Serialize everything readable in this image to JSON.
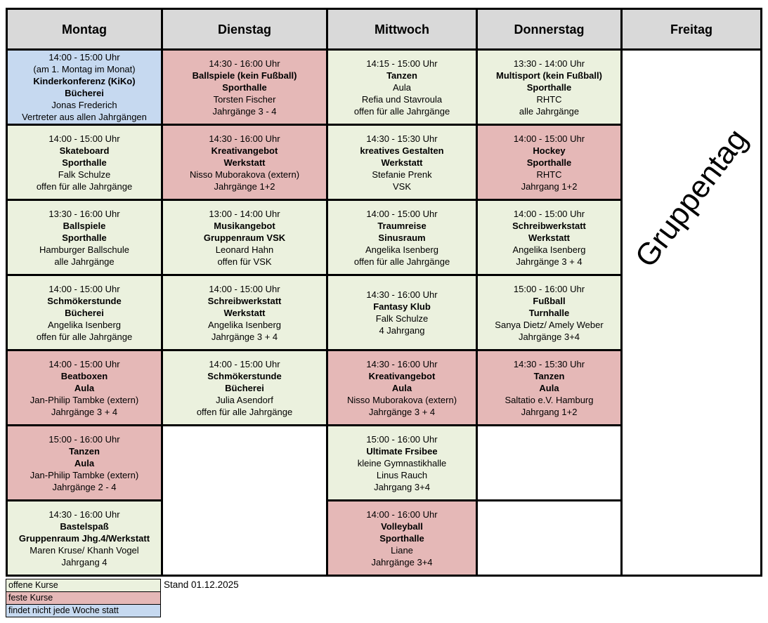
{
  "colors": {
    "open_course_bg": "#EBF1DE",
    "fixed_course_bg": "#E5B8B7",
    "not_weekly_bg": "#C6D9F0",
    "header_bg": "#D9D9D9",
    "empty_bg": "#FFFFFF",
    "border": "#000000"
  },
  "table": {
    "days": [
      {
        "label": "Montag",
        "cells": [
          {
            "bg": "not_weekly_bg",
            "lines": [
              {
                "text": "14:00 - 15:00 Uhr",
                "bold": false
              },
              {
                "text": "(am 1. Montag im Monat)",
                "bold": false
              },
              {
                "text": "Kinderkonferenz (KiKo)",
                "bold": true
              },
              {
                "text": "Bücherei",
                "bold": true
              },
              {
                "text": "Jonas Frederich",
                "bold": false
              },
              {
                "text": "Vertreter aus allen Jahrgängen",
                "bold": false
              }
            ]
          },
          {
            "bg": "open_course_bg",
            "lines": [
              {
                "text": "14:00 - 15:00 Uhr",
                "bold": false
              },
              {
                "text": "Skateboard",
                "bold": true
              },
              {
                "text": "Sporthalle",
                "bold": true
              },
              {
                "text": "Falk Schulze",
                "bold": false
              },
              {
                "text": "offen für alle Jahrgänge",
                "bold": false
              }
            ]
          },
          {
            "bg": "open_course_bg",
            "lines": [
              {
                "text": "13:30 - 16:00 Uhr",
                "bold": false
              },
              {
                "text": "Ballspiele",
                "bold": true
              },
              {
                "text": "Sporthalle",
                "bold": true
              },
              {
                "text": "Hamburger Ballschule",
                "bold": false
              },
              {
                "text": "alle Jahrgänge",
                "bold": false
              }
            ]
          },
          {
            "bg": "open_course_bg",
            "lines": [
              {
                "text": "14:00 - 15:00 Uhr",
                "bold": false
              },
              {
                "text": "Schmökerstunde",
                "bold": true
              },
              {
                "text": "Bücherei",
                "bold": true
              },
              {
                "text": "Angelika Isenberg",
                "bold": false
              },
              {
                "text": "offen für alle Jahrgänge",
                "bold": false
              }
            ]
          },
          {
            "bg": "fixed_course_bg",
            "lines": [
              {
                "text": "14:00 - 15:00 Uhr",
                "bold": false
              },
              {
                "text": "Beatboxen",
                "bold": true
              },
              {
                "text": "Aula",
                "bold": true
              },
              {
                "text": "Jan-Philip Tambke (extern)",
                "bold": false
              },
              {
                "text": "Jahrgänge 3 + 4",
                "bold": false
              }
            ]
          },
          {
            "bg": "fixed_course_bg",
            "lines": [
              {
                "text": "15:00 - 16:00 Uhr",
                "bold": false
              },
              {
                "text": "Tanzen",
                "bold": true
              },
              {
                "text": "Aula",
                "bold": true
              },
              {
                "text": "Jan-Philip Tambke (extern)",
                "bold": false
              },
              {
                "text": "Jahrgänge 2 - 4",
                "bold": false
              }
            ]
          },
          {
            "bg": "open_course_bg",
            "lines": [
              {
                "text": "14:30 - 16:00 Uhr",
                "bold": false
              },
              {
                "text": "Bastelspaß",
                "bold": true
              },
              {
                "text": "Gruppenraum Jhg.4/Werkstatt",
                "bold": true
              },
              {
                "text": "Maren Kruse/ Khanh Vogel",
                "bold": false
              },
              {
                "text": "Jahrgang 4",
                "bold": false
              }
            ]
          }
        ]
      },
      {
        "label": "Dienstag",
        "cells": [
          {
            "bg": "fixed_course_bg",
            "lines": [
              {
                "text": "14:30 - 16:00 Uhr",
                "bold": false
              },
              {
                "text": "Ballspiele (kein Fußball)",
                "bold": true
              },
              {
                "text": "Sporthalle",
                "bold": true
              },
              {
                "text": "Torsten Fischer",
                "bold": false
              },
              {
                "text": "Jahrgänge 3 - 4",
                "bold": false
              }
            ]
          },
          {
            "bg": "fixed_course_bg",
            "lines": [
              {
                "text": "14:30 - 16:00 Uhr",
                "bold": false
              },
              {
                "text": "Kreativangebot",
                "bold": true
              },
              {
                "text": "Werkstatt",
                "bold": true
              },
              {
                "text": "Nisso Muborakova (extern)",
                "bold": false
              },
              {
                "text": "Jahrgänge 1+2",
                "bold": false
              }
            ]
          },
          {
            "bg": "open_course_bg",
            "lines": [
              {
                "text": "13:00 - 14:00 Uhr",
                "bold": false
              },
              {
                "text": "Musikangebot",
                "bold": true
              },
              {
                "text": "Gruppenraum VSK",
                "bold": true
              },
              {
                "text": "Leonard Hahn",
                "bold": false
              },
              {
                "text": "offen für VSK",
                "bold": false
              }
            ]
          },
          {
            "bg": "open_course_bg",
            "lines": [
              {
                "text": "14:00 - 15:00 Uhr",
                "bold": false
              },
              {
                "text": "Schreibwerkstatt",
                "bold": true
              },
              {
                "text": "Werkstatt",
                "bold": true
              },
              {
                "text": "Angelika Isenberg",
                "bold": false
              },
              {
                "text": "Jahrgänge 3 + 4",
                "bold": false
              }
            ]
          },
          {
            "bg": "open_course_bg",
            "lines": [
              {
                "text": "14:00 - 15:00 Uhr",
                "bold": false
              },
              {
                "text": "Schmökerstunde",
                "bold": true
              },
              {
                "text": "Bücherei",
                "bold": true
              },
              {
                "text": "Julia Asendorf",
                "bold": false
              },
              {
                "text": "offen für alle Jahrgänge",
                "bold": false
              }
            ]
          },
          {
            "bg": "empty_bg",
            "span": 2,
            "lines": []
          }
        ]
      },
      {
        "label": "Mittwoch",
        "cells": [
          {
            "bg": "open_course_bg",
            "lines": [
              {
                "text": "14:15 - 15:00 Uhr",
                "bold": false
              },
              {
                "text": "Tanzen",
                "bold": true
              },
              {
                "text": "Aula",
                "bold": false
              },
              {
                "text": "Refia und Stavroula",
                "bold": false
              },
              {
                "text": "offen für alle Jahrgänge",
                "bold": false
              }
            ]
          },
          {
            "bg": "open_course_bg",
            "lines": [
              {
                "text": "14:30 - 15:30 Uhr",
                "bold": false
              },
              {
                "text": "kreatives Gestalten",
                "bold": true
              },
              {
                "text": "Werkstatt",
                "bold": true
              },
              {
                "text": "Stefanie Prenk",
                "bold": false
              },
              {
                "text": "VSK",
                "bold": false
              }
            ]
          },
          {
            "bg": "open_course_bg",
            "lines": [
              {
                "text": "14:00 - 15:00 Uhr",
                "bold": false
              },
              {
                "text": "Traumreise",
                "bold": true
              },
              {
                "text": "Sinusraum",
                "bold": true
              },
              {
                "text": "Angelika Isenberg",
                "bold": false
              },
              {
                "text": "offen für alle Jahrgänge",
                "bold": false
              }
            ]
          },
          {
            "bg": "open_course_bg",
            "lines": [
              {
                "text": "14:30 - 16:00 Uhr",
                "bold": false
              },
              {
                "text": "Fantasy Klub",
                "bold": true
              },
              {
                "text": "Falk Schulze",
                "bold": false
              },
              {
                "text": "4 Jahrgang",
                "bold": false
              }
            ]
          },
          {
            "bg": "fixed_course_bg",
            "lines": [
              {
                "text": "14:30 - 16:00 Uhr",
                "bold": false
              },
              {
                "text": "Kreativangebot",
                "bold": true
              },
              {
                "text": "Aula",
                "bold": true
              },
              {
                "text": "Nisso Muborakova (extern)",
                "bold": false
              },
              {
                "text": "Jahrgänge 3 + 4",
                "bold": false
              }
            ]
          },
          {
            "bg": "open_course_bg",
            "lines": [
              {
                "text": "15:00 - 16:00 Uhr",
                "bold": false
              },
              {
                "text": "Ultimate Frsibee",
                "bold": true
              },
              {
                "text": "kleine Gymnastikhalle",
                "bold": false
              },
              {
                "text": "Linus Rauch",
                "bold": false
              },
              {
                "text": "Jahrgang 3+4",
                "bold": false
              }
            ]
          },
          {
            "bg": "fixed_course_bg",
            "lines": [
              {
                "text": "14:00 - 16:00 Uhr",
                "bold": false
              },
              {
                "text": "Volleyball",
                "bold": true
              },
              {
                "text": "Sporthalle",
                "bold": true
              },
              {
                "text": "Liane",
                "bold": false
              },
              {
                "text": "Jahrgänge 3+4",
                "bold": false
              }
            ]
          }
        ]
      },
      {
        "label": "Donnerstag",
        "cells": [
          {
            "bg": "open_course_bg",
            "lines": [
              {
                "text": "13:30 - 14:00 Uhr",
                "bold": false
              },
              {
                "text": "Multisport (kein Fußball)",
                "bold": true
              },
              {
                "text": "Sporthalle",
                "bold": true
              },
              {
                "text": "RHTC",
                "bold": false
              },
              {
                "text": "alle Jahrgänge",
                "bold": false
              }
            ]
          },
          {
            "bg": "fixed_course_bg",
            "lines": [
              {
                "text": "14:00 - 15:00 Uhr",
                "bold": false
              },
              {
                "text": "Hockey",
                "bold": true
              },
              {
                "text": "Sporthalle",
                "bold": true
              },
              {
                "text": "RHTC",
                "bold": false
              },
              {
                "text": "Jahrgang 1+2",
                "bold": false
              }
            ]
          },
          {
            "bg": "open_course_bg",
            "lines": [
              {
                "text": "14:00 - 15:00 Uhr",
                "bold": false
              },
              {
                "text": "Schreibwerkstatt",
                "bold": true
              },
              {
                "text": "Werkstatt",
                "bold": true
              },
              {
                "text": "Angelika Isenberg",
                "bold": false
              },
              {
                "text": "Jahrgänge 3 + 4",
                "bold": false
              }
            ]
          },
          {
            "bg": "open_course_bg",
            "lines": [
              {
                "text": "15:00 - 16:00 Uhr",
                "bold": false
              },
              {
                "text": "Fußball",
                "bold": true
              },
              {
                "text": "Turnhalle",
                "bold": true
              },
              {
                "text": "Sanya Dietz/ Amely Weber",
                "bold": false
              },
              {
                "text": "Jahrgänge 3+4",
                "bold": false
              }
            ]
          },
          {
            "bg": "fixed_course_bg",
            "lines": [
              {
                "text": "14:30 - 15:30 Uhr",
                "bold": false
              },
              {
                "text": "Tanzen",
                "bold": true
              },
              {
                "text": "Aula",
                "bold": true
              },
              {
                "text": "Saltatio e.V. Hamburg",
                "bold": false
              },
              {
                "text": "Jahrgang 1+2",
                "bold": false
              }
            ]
          },
          {
            "bg": "empty_bg",
            "lines": []
          },
          {
            "bg": "empty_bg",
            "lines": []
          }
        ]
      },
      {
        "label": "Freitag",
        "cells": [
          {
            "bg": "empty_bg",
            "span": 7,
            "lines": [],
            "rotated_label": "Gruppentag"
          }
        ]
      }
    ]
  },
  "legend": {
    "items": [
      {
        "key": "open-courses",
        "label": "offene Kurse",
        "color": "open_course_bg"
      },
      {
        "key": "fixed-courses",
        "label": "feste Kurse",
        "color": "fixed_course_bg"
      },
      {
        "key": "not-every-week",
        "label": "findet nicht jede Woche statt",
        "color": "not_weekly_bg"
      }
    ]
  },
  "footer": {
    "stand": "Stand 01.12.2025"
  }
}
